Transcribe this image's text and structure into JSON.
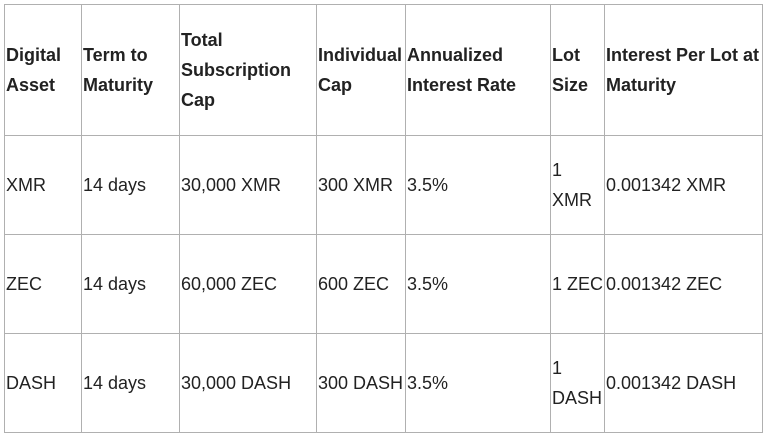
{
  "headers": [
    "Digital Asset",
    "Term to Maturity",
    "Total Subscription Cap",
    "Individual Cap",
    "Annualized Interest Rate",
    "Lot Size",
    "Interest Per Lot at Maturity"
  ],
  "rows": [
    [
      "XMR",
      "14 days",
      "30,000 XMR",
      "300 XMR",
      "3.5%",
      "1 XMR",
      "0.001342 XMR"
    ],
    [
      "ZEC",
      "14 days",
      "60,000 ZEC",
      "600 ZEC",
      "3.5%",
      "1 ZEC",
      "0.001342 ZEC"
    ],
    [
      "DASH",
      "14 days",
      "30,000 DASH",
      "300 DASH",
      "3.5%",
      "1 DASH",
      "0.001342 DASH"
    ]
  ]
}
